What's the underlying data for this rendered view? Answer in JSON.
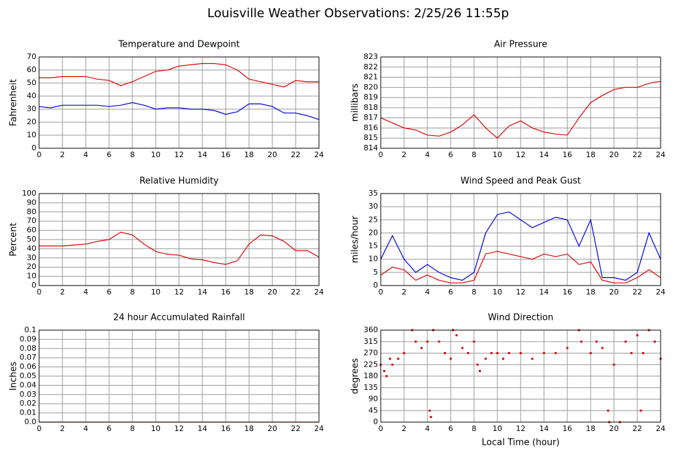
{
  "title": "Louisville Weather Observations: 2/25/26 11:55p",
  "chart_data": [
    {
      "type": "line",
      "title": "Temperature and Dewpoint",
      "ylabel": "Fahrenheit",
      "x": [
        0,
        1,
        2,
        3,
        4,
        5,
        6,
        7,
        8,
        9,
        10,
        11,
        12,
        13,
        14,
        15,
        16,
        17,
        18,
        19,
        20,
        21,
        22,
        23,
        24
      ],
      "series": [
        {
          "color": "#e00000",
          "values": [
            54,
            54,
            55,
            55,
            55,
            53,
            52,
            48,
            51,
            55,
            59,
            60,
            63,
            64,
            65,
            65,
            64,
            60,
            53,
            51,
            49,
            47,
            52,
            51,
            51
          ]
        },
        {
          "color": "#0000e0",
          "values": [
            32,
            31,
            33,
            33,
            33,
            33,
            32,
            33,
            35,
            33,
            30,
            31,
            31,
            30,
            30,
            29,
            26,
            28,
            34,
            34,
            32,
            27,
            27,
            25,
            22
          ]
        }
      ],
      "xlim": [
        0,
        24
      ],
      "xticks": [
        0,
        2,
        4,
        6,
        8,
        10,
        12,
        14,
        16,
        18,
        20,
        22,
        24
      ],
      "ylim": [
        0,
        70
      ],
      "yticks": [
        0,
        10,
        20,
        30,
        40,
        50,
        60,
        70
      ],
      "grid": true
    },
    {
      "type": "line",
      "title": "Air Pressure",
      "ylabel": "millibars",
      "x": [
        0,
        1,
        2,
        3,
        4,
        5,
        6,
        7,
        8,
        9,
        10,
        11,
        12,
        13,
        14,
        15,
        16,
        17,
        18,
        19,
        20,
        21,
        22,
        23,
        24
      ],
      "series": [
        {
          "color": "#e00000",
          "values": [
            817,
            816.5,
            816,
            815.8,
            815.3,
            815.2,
            815.6,
            816.3,
            817.3,
            816,
            815,
            816.2,
            816.7,
            816,
            815.6,
            815.4,
            815.3,
            817,
            818.5,
            819.2,
            819.8,
            820,
            820,
            820.4,
            820.6
          ]
        }
      ],
      "xlim": [
        0,
        24
      ],
      "xticks": [
        0,
        2,
        4,
        6,
        8,
        10,
        12,
        14,
        16,
        18,
        20,
        22,
        24
      ],
      "ylim": [
        814,
        823
      ],
      "yticks": [
        814,
        815,
        816,
        817,
        818,
        819,
        820,
        821,
        822,
        823
      ],
      "grid": true
    },
    {
      "type": "line",
      "title": "Relative Humidity",
      "ylabel": "Percent",
      "x": [
        0,
        1,
        2,
        3,
        4,
        5,
        6,
        7,
        8,
        9,
        10,
        11,
        12,
        13,
        14,
        15,
        16,
        17,
        18,
        19,
        20,
        21,
        22,
        23,
        24
      ],
      "series": [
        {
          "color": "#e00000",
          "values": [
            43,
            43,
            43,
            44,
            45,
            48,
            50,
            58,
            55,
            45,
            37,
            34,
            33,
            29,
            28,
            25,
            23,
            27,
            45,
            55,
            54,
            48,
            38,
            38,
            31
          ]
        }
      ],
      "xlim": [
        0,
        24
      ],
      "xticks": [
        0,
        2,
        4,
        6,
        8,
        10,
        12,
        14,
        16,
        18,
        20,
        22,
        24
      ],
      "ylim": [
        0,
        100
      ],
      "yticks": [
        0,
        10,
        20,
        30,
        40,
        50,
        60,
        70,
        80,
        90,
        100
      ],
      "grid": true
    },
    {
      "type": "line",
      "title": "Wind Speed and Peak Gust",
      "ylabel": "miles/hour",
      "x": [
        0,
        1,
        2,
        3,
        4,
        5,
        6,
        7,
        8,
        9,
        10,
        11,
        12,
        13,
        14,
        15,
        16,
        17,
        18,
        19,
        20,
        21,
        22,
        23,
        24
      ],
      "series": [
        {
          "color": "#0000e0",
          "values": [
            10,
            19,
            10,
            5,
            8,
            5,
            3,
            2,
            5,
            20,
            27,
            28,
            25,
            22,
            24,
            26,
            25,
            15,
            25,
            3,
            3,
            2,
            5,
            20,
            10
          ]
        },
        {
          "color": "#e00000",
          "values": [
            4,
            7,
            6,
            2,
            4,
            2,
            1,
            1,
            2,
            12,
            13,
            12,
            11,
            10,
            12,
            11,
            12,
            8,
            9,
            2,
            1,
            1,
            3,
            6,
            3
          ]
        }
      ],
      "xlim": [
        0,
        24
      ],
      "xticks": [
        0,
        2,
        4,
        6,
        8,
        10,
        12,
        14,
        16,
        18,
        20,
        22,
        24
      ],
      "ylim": [
        0,
        35
      ],
      "yticks": [
        0,
        5,
        10,
        15,
        20,
        25,
        30,
        35
      ],
      "grid": true
    },
    {
      "type": "line",
      "title": "24 hour Accumulated Rainfall",
      "ylabel": "Inches",
      "x": [
        0,
        1,
        2,
        3,
        4,
        5,
        6,
        7,
        8,
        9,
        10,
        11,
        12,
        13,
        14,
        15,
        16,
        17,
        18,
        19,
        20,
        21,
        22,
        23,
        24
      ],
      "series": [
        {
          "color": "#e00000",
          "values": [
            0,
            0,
            0,
            0,
            0,
            0,
            0,
            0,
            0,
            0,
            0,
            0,
            0,
            0,
            0,
            0,
            0,
            0,
            0,
            0,
            0,
            0,
            0,
            0,
            0
          ]
        }
      ],
      "xlim": [
        0,
        24
      ],
      "xticks": [
        0,
        2,
        4,
        6,
        8,
        10,
        12,
        14,
        16,
        18,
        20,
        22,
        24
      ],
      "ylim": [
        0,
        0.1
      ],
      "yticks": [
        {
          "value": 0,
          "label": "0.0"
        },
        0.01,
        0.02,
        0.03,
        0.04,
        0.05,
        0.06,
        0.07,
        0.08,
        0.09,
        0.1
      ],
      "grid": true
    },
    {
      "type": "scatter",
      "title": "Wind Direction",
      "ylabel": "degrees",
      "xlabel": "Local Time (hour)",
      "x": [
        0,
        0.3,
        0.5,
        0.8,
        1,
        1.5,
        2,
        2.7,
        3,
        3.5,
        4,
        4.2,
        4.3,
        4.5,
        5,
        5.5,
        6,
        6.2,
        6.5,
        7,
        7.5,
        8,
        8.3,
        8.5,
        9,
        9.5,
        10,
        10.5,
        11,
        12,
        13,
        14,
        15,
        16,
        17,
        17.2,
        18,
        18.5,
        19,
        19.5,
        19.6,
        20,
        20.5,
        21,
        21.5,
        22,
        22.3,
        22.5,
        23,
        23.5,
        24
      ],
      "series": [
        {
          "color": "#e00000",
          "values": [
            225,
            200,
            180,
            248,
            225,
            248,
            270,
            360,
            315,
            290,
            315,
            45,
            20,
            360,
            315,
            270,
            248,
            360,
            340,
            290,
            270,
            315,
            225,
            200,
            248,
            270,
            270,
            248,
            270,
            270,
            248,
            270,
            270,
            290,
            360,
            315,
            270,
            315,
            290,
            45,
            0,
            225,
            0,
            315,
            270,
            340,
            45,
            270,
            360,
            315,
            248
          ]
        }
      ],
      "xlim": [
        0,
        24
      ],
      "xticks": [
        0,
        2,
        4,
        6,
        8,
        10,
        12,
        14,
        16,
        18,
        20,
        22,
        24
      ],
      "ylim": [
        0,
        360
      ],
      "yticks": [
        0,
        45,
        90,
        135,
        180,
        225,
        270,
        315,
        360
      ],
      "grid": true
    }
  ]
}
